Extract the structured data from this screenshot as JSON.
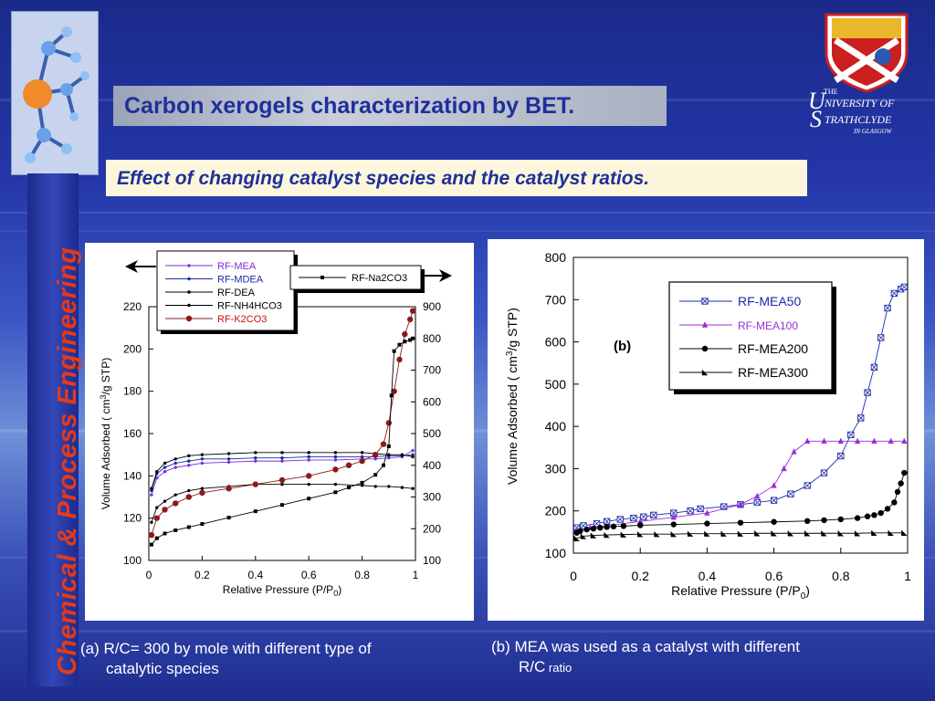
{
  "slide": {
    "title": "Carbon xerogels characterization by BET.",
    "subtitle": "Effect of changing catalyst species and the catalyst ratios.",
    "sidebar_label": "Chemical & Process Engineering",
    "logo": {
      "the": "THE",
      "line1": "NIVERSITY OF",
      "line2": "TRATHCLYDE",
      "line3": "IN GLASGOW",
      "initial1": "U",
      "initial2": "S"
    }
  },
  "captions": {
    "a_line1": "(a) R/C= 300 by mole with different type of",
    "a_line2": "catalytic species",
    "b_line1": "(b) MEA was used as a catalyst  with different",
    "b_line2_main": "R/C",
    "b_line2_small": " ratio"
  },
  "colors": {
    "mea": "#7b2fd6",
    "mdea": "#1b2ba8",
    "k2co3": "#8b1a1a",
    "black": "#000000",
    "mea100": "#9a2fd8"
  },
  "chart_data": [
    {
      "id": "a",
      "type": "line",
      "xlabel": "Relative Pressure (P/P0)",
      "ylabel": "Volume Adsorbed ( cm3/g STP)",
      "xlim": [
        0,
        1
      ],
      "ylim_left": [
        100,
        220
      ],
      "ylim_right": [
        100,
        900
      ],
      "x_ticks": [
        "0",
        "0.2",
        "0.4",
        "0.6",
        "0.8",
        "1"
      ],
      "y_ticks_left": [
        "100",
        "120",
        "140",
        "160",
        "180",
        "200",
        "220"
      ],
      "y_ticks_right": [
        "100",
        "200",
        "300",
        "400",
        "500",
        "600",
        "700",
        "800",
        "900"
      ],
      "legend": [
        "RF-MEA",
        "RF-MDEA",
        "RF-DEA",
        "RF-NH4HCO3",
        "RF-K2CO3"
      ],
      "legend_right": [
        "RF-Na2CO3"
      ],
      "series": [
        {
          "name": "RF-MEA",
          "axis": "left",
          "color": "#7b2fd6",
          "x": [
            0.01,
            0.03,
            0.06,
            0.1,
            0.15,
            0.2,
            0.3,
            0.4,
            0.5,
            0.6,
            0.7,
            0.8,
            0.85,
            0.9,
            0.95,
            0.99
          ],
          "y": [
            131,
            139,
            142,
            144,
            145,
            146,
            146.5,
            147,
            147,
            147.5,
            147.5,
            148,
            148,
            148.5,
            149,
            152
          ]
        },
        {
          "name": "RF-MDEA",
          "axis": "left",
          "color": "#1b2ba8",
          "x": [
            0.01,
            0.03,
            0.06,
            0.1,
            0.15,
            0.2,
            0.3,
            0.4,
            0.5,
            0.6,
            0.7,
            0.8,
            0.85,
            0.9,
            0.95,
            0.99
          ],
          "y": [
            133,
            141,
            144,
            146,
            147,
            148,
            148,
            148.5,
            148.5,
            149,
            149,
            149,
            149,
            149.5,
            149.5,
            150
          ]
        },
        {
          "name": "RF-DEA",
          "axis": "left",
          "color": "#000000",
          "x": [
            0.01,
            0.03,
            0.06,
            0.1,
            0.15,
            0.2,
            0.3,
            0.4,
            0.5,
            0.6,
            0.7,
            0.8,
            0.85,
            0.9,
            0.95,
            0.99
          ],
          "y": [
            134,
            142,
            146,
            148,
            149.5,
            150,
            150.5,
            151,
            151,
            151,
            151,
            151,
            150.5,
            150,
            150,
            149
          ]
        },
        {
          "name": "RF-NH4HCO3",
          "axis": "left",
          "color": "#000000",
          "x": [
            0.01,
            0.03,
            0.06,
            0.1,
            0.15,
            0.2,
            0.3,
            0.4,
            0.5,
            0.6,
            0.7,
            0.8,
            0.85,
            0.9,
            0.95,
            0.99
          ],
          "y": [
            118,
            125,
            128,
            131,
            133,
            134,
            135,
            136,
            136,
            136,
            136,
            135.5,
            135,
            135,
            134.5,
            134
          ]
        },
        {
          "name": "RF-K2CO3",
          "axis": "left",
          "color": "#8b1a1a",
          "x": [
            0.01,
            0.03,
            0.06,
            0.1,
            0.15,
            0.2,
            0.3,
            0.4,
            0.5,
            0.6,
            0.7,
            0.75,
            0.8,
            0.85,
            0.88,
            0.9,
            0.92,
            0.94,
            0.96,
            0.98,
            0.99
          ],
          "y": [
            112,
            120,
            124,
            127,
            130,
            132,
            134,
            136,
            138,
            140,
            143,
            145,
            147,
            150,
            155,
            165,
            180,
            195,
            207,
            214,
            218
          ]
        },
        {
          "name": "RF-Na2CO3",
          "axis": "right",
          "color": "#000000",
          "x": [
            0.01,
            0.03,
            0.06,
            0.1,
            0.15,
            0.2,
            0.3,
            0.4,
            0.5,
            0.6,
            0.7,
            0.75,
            0.8,
            0.85,
            0.88,
            0.9,
            0.91,
            0.92,
            0.94,
            0.96,
            0.98,
            0.99
          ],
          "y": [
            150,
            170,
            185,
            195,
            205,
            215,
            235,
            255,
            275,
            295,
            315,
            330,
            345,
            370,
            400,
            460,
            620,
            760,
            780,
            790,
            795,
            800
          ]
        }
      ]
    },
    {
      "id": "b",
      "type": "line",
      "panel_label": "(b)",
      "xlabel": "Relative Pressure (P/P0)",
      "ylabel": "Volume Adsorbed ( cm3/g STP)",
      "xlim": [
        0,
        1
      ],
      "ylim": [
        100,
        800
      ],
      "x_ticks": [
        "0",
        "0.2",
        "0.4",
        "0.6",
        "0.8",
        "1"
      ],
      "y_ticks": [
        "100",
        "200",
        "300",
        "400",
        "500",
        "600",
        "700",
        "800"
      ],
      "series": [
        {
          "name": "RF-MEA50",
          "color": "#1b2ba8",
          "marker": "boxx",
          "x": [
            0.01,
            0.03,
            0.07,
            0.1,
            0.14,
            0.18,
            0.21,
            0.24,
            0.3,
            0.35,
            0.38,
            0.45,
            0.5,
            0.55,
            0.6,
            0.65,
            0.7,
            0.75,
            0.8,
            0.83,
            0.86,
            0.88,
            0.9,
            0.92,
            0.94,
            0.96,
            0.98,
            0.99
          ],
          "y": [
            160,
            165,
            170,
            175,
            180,
            183,
            186,
            190,
            195,
            200,
            205,
            210,
            215,
            220,
            225,
            240,
            260,
            290,
            330,
            380,
            420,
            480,
            540,
            610,
            680,
            715,
            725,
            730
          ]
        },
        {
          "name": "RF-MEA100",
          "color": "#9a2fd8",
          "marker": "triangle",
          "x": [
            0.01,
            0.05,
            0.1,
            0.2,
            0.3,
            0.4,
            0.5,
            0.55,
            0.6,
            0.63,
            0.66,
            0.7,
            0.75,
            0.8,
            0.85,
            0.9,
            0.95,
            0.99
          ],
          "y": [
            155,
            160,
            165,
            175,
            185,
            195,
            215,
            235,
            260,
            300,
            340,
            365,
            365,
            365,
            365,
            365,
            365,
            365
          ]
        },
        {
          "name": "RF-MEA200",
          "color": "#000000",
          "marker": "circle",
          "x": [
            0.01,
            0.02,
            0.04,
            0.06,
            0.08,
            0.1,
            0.12,
            0.15,
            0.2,
            0.3,
            0.4,
            0.5,
            0.6,
            0.7,
            0.75,
            0.8,
            0.85,
            0.88,
            0.9,
            0.92,
            0.94,
            0.96,
            0.97,
            0.98,
            0.99
          ],
          "y": [
            148,
            152,
            156,
            158,
            160,
            162,
            163,
            164,
            166,
            168,
            170,
            172,
            174,
            176,
            178,
            180,
            183,
            187,
            190,
            195,
            205,
            220,
            245,
            265,
            290
          ]
        },
        {
          "name": "RF-MEA300",
          "color": "#000000",
          "marker": "righttri",
          "x": [
            0.01,
            0.03,
            0.06,
            0.1,
            0.15,
            0.2,
            0.25,
            0.3,
            0.35,
            0.4,
            0.45,
            0.5,
            0.55,
            0.6,
            0.65,
            0.7,
            0.75,
            0.8,
            0.85,
            0.9,
            0.95,
            0.99
          ],
          "y": [
            135,
            140,
            142,
            143,
            144,
            145,
            145,
            145,
            146,
            146,
            146,
            146,
            147,
            147,
            147,
            147,
            147,
            147,
            147,
            148,
            148,
            148
          ]
        }
      ]
    }
  ]
}
